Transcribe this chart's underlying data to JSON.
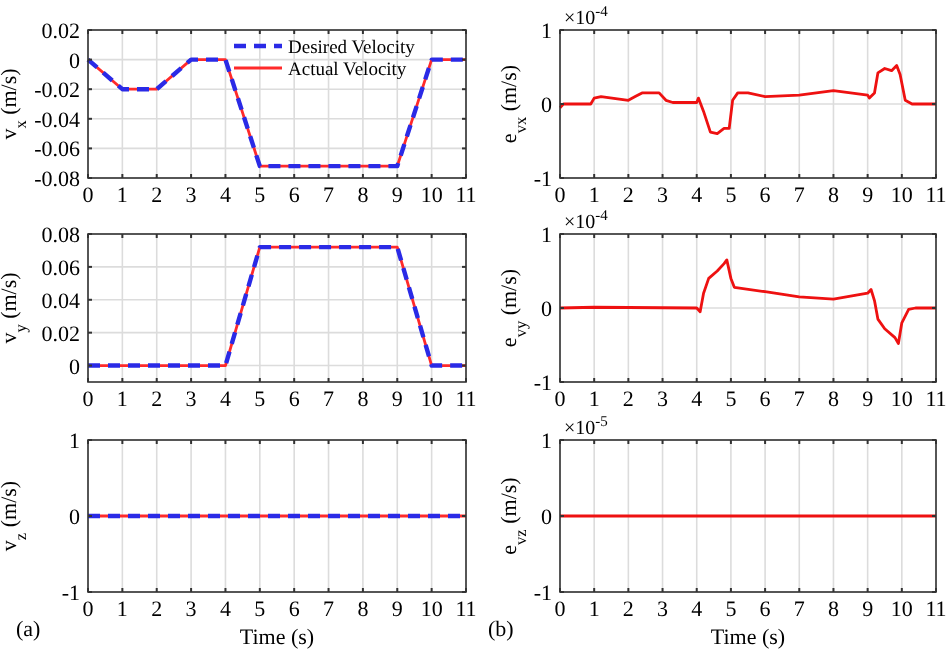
{
  "chart_data": [
    {
      "type": "line",
      "ylabel": "v$_{x}$ (m/s)",
      "xlim": [
        0,
        11
      ],
      "xticks": [
        0,
        1,
        2,
        3,
        4,
        5,
        6,
        7,
        8,
        9,
        10,
        11
      ],
      "ylim": [
        -0.08,
        0.02
      ],
      "yticks": [
        {
          "value": -0.08,
          "label": "-0.08"
        },
        {
          "value": -0.06,
          "label": "-0.06"
        },
        {
          "value": -0.04,
          "label": "-0.04"
        },
        {
          "value": -0.02,
          "label": "-0.02"
        },
        0,
        0.02
      ],
      "grid": true,
      "legend": "top right",
      "series": [
        {
          "name": "Actual Velocity",
          "color": "#ff2a2a",
          "line_style": "solid",
          "x": [
            0,
            1,
            2,
            3,
            4,
            5,
            9,
            10,
            11
          ],
          "values": [
            0,
            -0.02,
            -0.02,
            0,
            0,
            -0.072,
            -0.072,
            0,
            0
          ]
        },
        {
          "name": "Desired Velocity",
          "color": "#2a2ae6",
          "line_style": "dashed",
          "x": [
            0,
            1,
            2,
            3,
            4,
            5,
            9,
            10,
            11
          ],
          "values": [
            0,
            -0.02,
            -0.02,
            0,
            0,
            -0.072,
            -0.072,
            0,
            0
          ]
        }
      ]
    },
    {
      "type": "line",
      "ylabel": "v$_{y}$ (m/s)",
      "xlim": [
        0,
        11
      ],
      "xticks": [
        0,
        1,
        2,
        3,
        4,
        5,
        6,
        7,
        8,
        9,
        10,
        11
      ],
      "ylim": [
        -0.01,
        0.08
      ],
      "yticks": [
        0,
        0.02,
        0.04,
        0.06,
        0.08
      ],
      "grid": true,
      "legend": false,
      "series": [
        {
          "color": "#ff2a2a",
          "line_style": "solid",
          "x": [
            0,
            4,
            5,
            9,
            10,
            11
          ],
          "values": [
            0,
            0,
            0.072,
            0.072,
            0,
            0
          ]
        },
        {
          "color": "#2a2ae6",
          "line_style": "dashed",
          "x": [
            0,
            4,
            5,
            9,
            10,
            11
          ],
          "values": [
            0,
            0,
            0.072,
            0.072,
            0,
            0
          ]
        }
      ]
    },
    {
      "type": "line",
      "ylabel": "v$_{z}$ (m/s)",
      "xlabel": "Time (s)",
      "annotations": [
        "(a)"
      ],
      "xlim": [
        0,
        11
      ],
      "xticks": [
        0,
        1,
        2,
        3,
        4,
        5,
        6,
        7,
        8,
        9,
        10,
        11
      ],
      "ylim": [
        -1,
        1
      ],
      "yticks": [
        -1,
        0,
        1
      ],
      "grid": true,
      "legend": false,
      "series": [
        {
          "color": "#ff2a2a",
          "line_style": "solid",
          "x": [
            0,
            11
          ],
          "values": [
            0,
            0
          ]
        },
        {
          "color": "#2a2ae6",
          "line_style": "dashed",
          "x": [
            0,
            11
          ],
          "values": [
            0,
            0
          ]
        }
      ]
    },
    {
      "type": "line",
      "ylabel": "e$_{vx}$ (m/s)",
      "annotations": [
        "×10$^{-4}$"
      ],
      "xlim": [
        0,
        11
      ],
      "xticks": [
        0,
        1,
        2,
        3,
        4,
        5,
        6,
        7,
        8,
        9,
        10,
        11
      ],
      "ylim": [
        -1,
        1
      ],
      "yticks": [
        -1,
        0,
        1
      ],
      "grid": true,
      "legend": false,
      "series": [
        {
          "color": "#ee1111",
          "line_style": "solid",
          "x": [
            0,
            0.1,
            0.9,
            1,
            1.2,
            2,
            2.2,
            2.4,
            2.9,
            3.1,
            3.3,
            4,
            4.05,
            4.2,
            4.4,
            4.6,
            4.8,
            4.95,
            5.05,
            5.2,
            5.5,
            6,
            7,
            8,
            9,
            9.05,
            9.2,
            9.3,
            9.5,
            9.7,
            9.85,
            9.95,
            10.1,
            10.3,
            11
          ],
          "values": [
            -0.05,
            0,
            0,
            0.08,
            0.1,
            0.05,
            0.1,
            0.15,
            0.15,
            0.05,
            0.02,
            0.02,
            0.08,
            -0.1,
            -0.38,
            -0.4,
            -0.33,
            -0.33,
            0.05,
            0.15,
            0.15,
            0.1,
            0.12,
            0.18,
            0.12,
            0.08,
            0.15,
            0.42,
            0.48,
            0.45,
            0.52,
            0.4,
            0.05,
            0,
            0
          ]
        }
      ]
    },
    {
      "type": "line",
      "ylabel": "e$_{vy}$ (m/s)",
      "annotations": [
        "×10$^{-4}$"
      ],
      "xlim": [
        0,
        11
      ],
      "xticks": [
        0,
        1,
        2,
        3,
        4,
        5,
        6,
        7,
        8,
        9,
        10,
        11
      ],
      "ylim": [
        -1,
        1
      ],
      "yticks": [
        -1,
        0,
        1
      ],
      "grid": true,
      "legend": false,
      "series": [
        {
          "color": "#ee1111",
          "line_style": "solid",
          "x": [
            0,
            1,
            4,
            4.1,
            4.2,
            4.35,
            4.6,
            4.8,
            4.88,
            5,
            5.1,
            6,
            7,
            8,
            9,
            9.1,
            9.2,
            9.3,
            9.5,
            9.8,
            9.9,
            10,
            10.2,
            10.4,
            11
          ],
          "values": [
            0,
            0.01,
            0,
            -0.05,
            0.2,
            0.4,
            0.5,
            0.6,
            0.65,
            0.4,
            0.28,
            0.22,
            0.15,
            0.12,
            0.2,
            0.25,
            0.1,
            -0.15,
            -0.28,
            -0.4,
            -0.48,
            -0.2,
            -0.02,
            0,
            0
          ]
        }
      ]
    },
    {
      "type": "line",
      "ylabel": "e$_{vz}$ (m/s)",
      "xlabel": "Time (s)",
      "annotations": [
        "×10$^{-5}$",
        "(b)"
      ],
      "xlim": [
        0,
        11
      ],
      "xticks": [
        0,
        1,
        2,
        3,
        4,
        5,
        6,
        7,
        8,
        9,
        10,
        11
      ],
      "ylim": [
        -1,
        1
      ],
      "yticks": [
        -1,
        0,
        1
      ],
      "grid": true,
      "legend": false,
      "series": [
        {
          "color": "#ee1111",
          "line_style": "solid",
          "x": [
            0,
            11
          ],
          "values": [
            0,
            0
          ]
        }
      ]
    }
  ]
}
